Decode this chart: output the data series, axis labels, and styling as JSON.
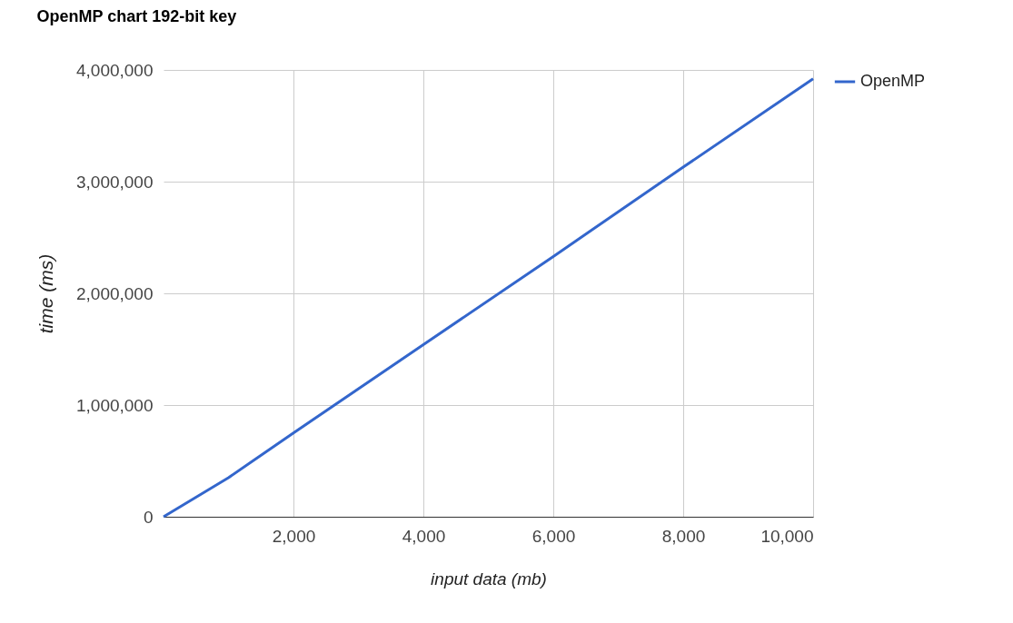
{
  "chart_data": {
    "type": "line",
    "title": "OpenMP chart 192-bit key",
    "xlabel": "input data (mb)",
    "ylabel": "time (ms)",
    "x": [
      0,
      1000,
      2000,
      4000,
      6000,
      8000,
      10000
    ],
    "series": [
      {
        "name": "OpenMP",
        "color": "#3366cc",
        "values": [
          0,
          350000,
          750000,
          1540000,
          2330000,
          3130000,
          3920000
        ]
      }
    ],
    "xlim": [
      0,
      10000
    ],
    "xticks": [
      {
        "value": 2000,
        "label": "2,000"
      },
      {
        "value": 4000,
        "label": "4,000"
      },
      {
        "value": 6000,
        "label": "6,000"
      },
      {
        "value": 8000,
        "label": "8,000"
      },
      {
        "value": 10000,
        "label": "10,000"
      }
    ],
    "ylim": [
      0,
      4000000
    ],
    "yticks": [
      {
        "value": 0,
        "label": "0"
      },
      {
        "value": 1000000,
        "label": "1,000,000"
      },
      {
        "value": 2000000,
        "label": "2,000,000"
      },
      {
        "value": 3000000,
        "label": "3,000,000"
      },
      {
        "value": 4000000,
        "label": "4,000,000"
      }
    ],
    "grid": true,
    "legend": "right",
    "marker": "none",
    "line_style": "solid"
  }
}
